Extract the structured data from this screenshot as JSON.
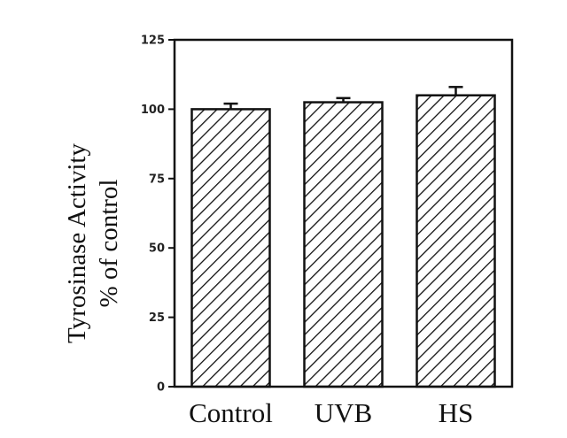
{
  "chart_data": {
    "type": "bar",
    "categories": [
      "Control",
      "UVB",
      "HS"
    ],
    "values": [
      100,
      102.5,
      105
    ],
    "errors": [
      2,
      1.5,
      3
    ],
    "ylabel_line1": "Tyrosinase Activity",
    "ylabel_line2": "% of control",
    "ylim": [
      0,
      125
    ],
    "yticks": [
      0,
      25,
      50,
      75,
      100,
      125
    ],
    "bar_pattern": "diagonal-hatch",
    "bar_color": "#111111",
    "grid": false,
    "legend": "none"
  }
}
